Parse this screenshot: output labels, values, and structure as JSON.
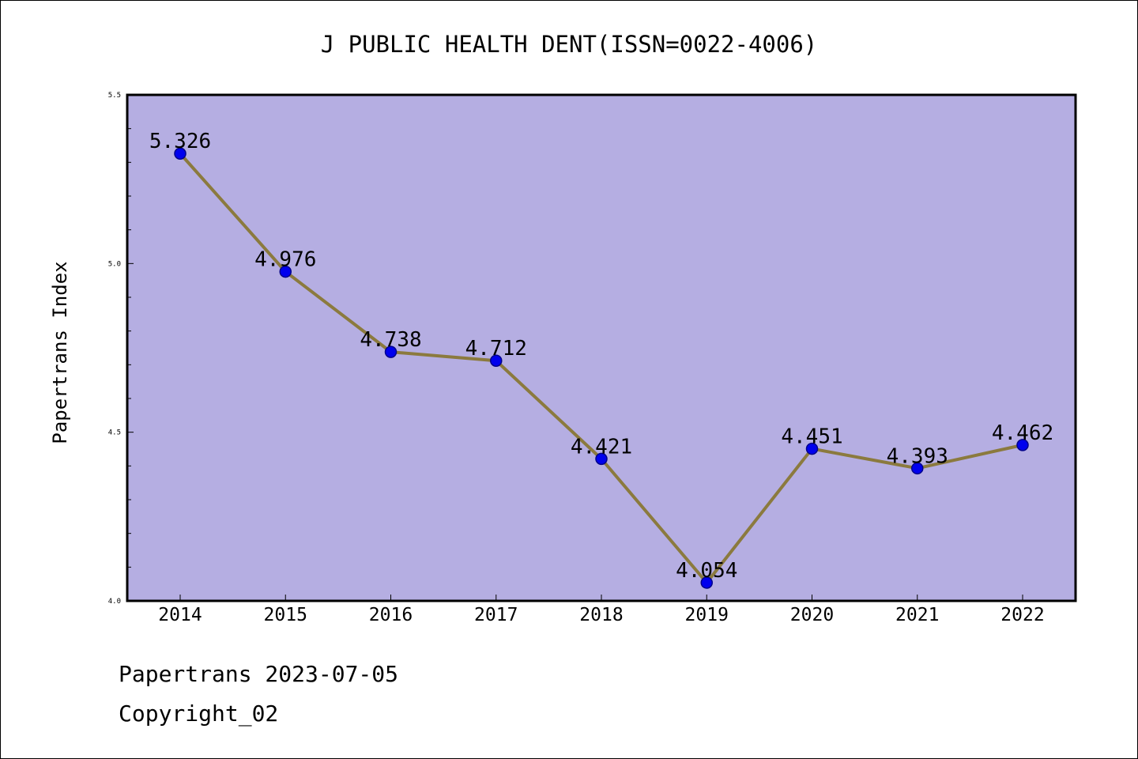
{
  "footer": {
    "date_line": "Papertrans 2023-07-05",
    "copyright_line": "Copyright_02"
  },
  "chart_data": {
    "type": "line",
    "title": "J PUBLIC HEALTH DENT(ISSN=0022-4006)",
    "xlabel": "",
    "ylabel": "Papertrans Index",
    "categories": [
      "2014",
      "2015",
      "2016",
      "2017",
      "2018",
      "2019",
      "2020",
      "2021",
      "2022"
    ],
    "series": [
      {
        "values": [
          5.326,
          4.976,
          4.738,
          4.712,
          4.421,
          4.054,
          4.451,
          4.393,
          4.462
        ],
        "data_labels": [
          "5.326",
          "4.976",
          "4.738",
          "4.712",
          "4.421",
          "4.054",
          "4.451",
          "4.393",
          "4.462"
        ]
      }
    ],
    "ylim": [
      4.0,
      5.5
    ],
    "y_ticks": [
      "4.0",
      "4.5",
      "5.0",
      "5.5"
    ],
    "y_ticks_values": [
      4.0,
      4.5,
      5.0,
      5.5
    ],
    "y_minor_step": 0.1,
    "grid": false,
    "legend": "none",
    "colors": {
      "plot_background": "#b5aee2",
      "line": "#8b7a3e",
      "marker_fill": "#0000ee",
      "marker_edge": "#00008b",
      "axes": "#000000"
    }
  }
}
